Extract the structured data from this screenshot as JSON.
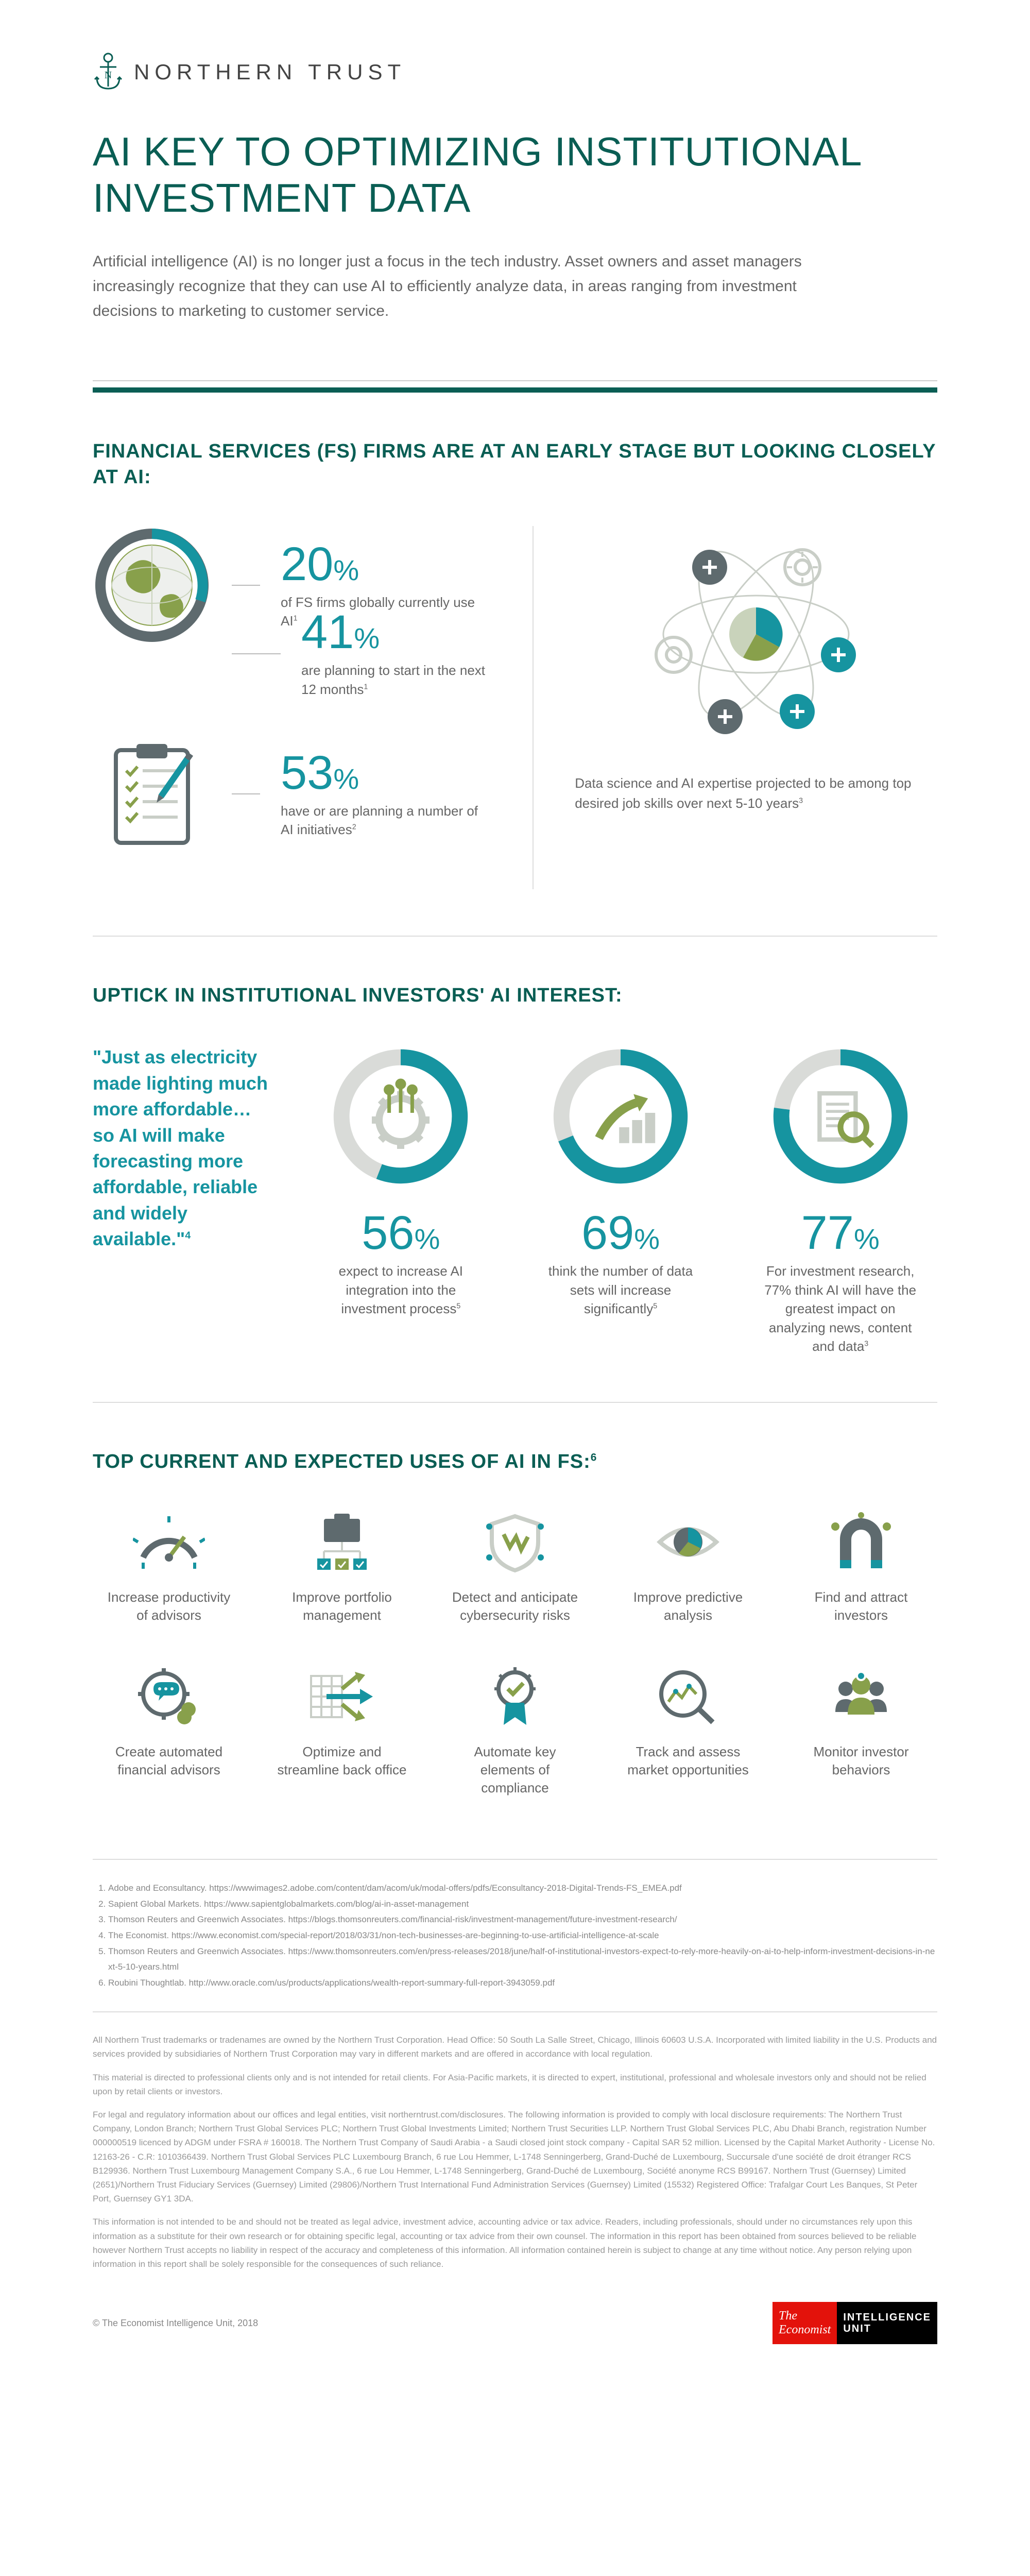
{
  "brand": "NORTHERN TRUST",
  "colors": {
    "primary": "#0a5e54",
    "accent": "#1694a0",
    "olive": "#88a04b",
    "grey": "#5e6a6e",
    "lightgrey": "#d9dbd8",
    "text": "#666"
  },
  "title": "AI KEY TO OPTIMIZING INSTITUTIONAL INVESTMENT DATA",
  "intro": "Artificial intelligence (AI) is no longer just a focus in the tech industry. Asset owners and asset managers increasingly recognize that they can use AI to efficiently analyze data, in areas ranging from investment decisions to marketing to customer service.",
  "section1_heading": "FINANCIAL SERVICES (FS) FIRMS ARE AT AN EARLY STAGE BUT LOOKING CLOSELY AT AI:",
  "stats": [
    {
      "value": "20",
      "desc": "of FS firms globally currently use AI",
      "sup": "1"
    },
    {
      "value": "41",
      "desc": "are planning to start in the next 12 months",
      "sup": "1"
    },
    {
      "value": "53",
      "desc": "have or are planning a number of AI initiatives",
      "sup": "2"
    }
  ],
  "atom_caption": "Data science and AI expertise projected to be among top desired job skills over next 5-10 years",
  "atom_sup": "3",
  "section2_heading": "UPTICK IN INSTITUTIONAL INVESTORS' AI INTEREST:",
  "quote": "\"Just as electricity made lighting much more affordable… so AI will make forecasting more affordable, reliable and widely available.\"",
  "quote_sup": "4",
  "donuts": [
    {
      "pct": 56,
      "label": "56",
      "desc": "expect to increase AI integration into the investment process",
      "sup": "5"
    },
    {
      "pct": 69,
      "label": "69",
      "desc": "think the number of data sets will increase significantly",
      "sup": "5"
    },
    {
      "pct": 77,
      "label": "77",
      "desc": "For investment research, 77% think AI will have the greatest impact on analyzing news, content and data",
      "sup": "3"
    }
  ],
  "section3_heading": "TOP CURRENT AND EXPECTED USES OF AI IN FS:",
  "section3_sup": "6",
  "uses": [
    "Increase productivity of advisors",
    "Improve portfolio management",
    "Detect and anticipate cybersecurity risks",
    "Improve predictive analysis",
    "Find and attract investors",
    "Create automated financial advisors",
    "Optimize and streamline back office",
    "Automate key elements of compliance",
    "Track and assess market opportunities",
    "Monitor investor behaviors"
  ],
  "references": [
    "Adobe and Econsultancy. https://wwwimages2.adobe.com/content/dam/acom/uk/modal-offers/pdfs/Econsultancy-2018-Digital-Trends-FS_EMEA.pdf",
    "Sapient Global Markets. https://www.sapientglobalmarkets.com/blog/ai-in-asset-management",
    "Thomson Reuters and Greenwich Associates. https://blogs.thomsonreuters.com/financial-risk/investment-management/future-investment-research/",
    "The Economist. https://www.economist.com/special-report/2018/03/31/non-tech-businesses-are-beginning-to-use-artificial-intelligence-at-scale",
    "Thomson Reuters and Greenwich Associates. https://www.thomsonreuters.com/en/press-releases/2018/june/half-of-institutional-investors-expect-to-rely-more-heavily-on-ai-to-help-inform-investment-decisions-in-next-5-10-years.html",
    "Roubini Thoughtlab. http://www.oracle.com/us/products/applications/wealth-report-summary-full-report-3943059.pdf"
  ],
  "legal": [
    "All Northern Trust trademarks or tradenames are owned by the Northern Trust Corporation. Head Office: 50 South La Salle Street, Chicago, Illinois 60603 U.S.A. Incorporated with limited liability in the U.S. Products and services provided by subsidiaries of Northern Trust Corporation may vary in different markets and are offered in accordance with local regulation.",
    "This material is directed to professional clients only and is not intended for retail clients. For Asia-Pacific markets, it is directed to expert, institutional, professional and wholesale investors only and should not be relied upon by retail clients or investors.",
    "For legal and regulatory information about our offices and legal entities, visit northerntrust.com/disclosures. The following information is provided to comply with local disclosure requirements: The Northern Trust Company, London Branch; Northern Trust Global Services PLC; Northern Trust Global Investments Limited; Northern Trust Securities LLP. Northern Trust Global Services PLC, Abu Dhabi Branch, registration Number 000000519 licenced by ADGM under FSRA # 160018. The Northern Trust Company of Saudi Arabia - a Saudi closed joint stock company - Capital SAR 52 million. Licensed by the Capital Market Authority - License No. 12163-26 - C.R: 1010366439. Northern Trust Global Services PLC Luxembourg Branch, 6 rue Lou Hemmer, L-1748 Senningerberg, Grand-Duché de Luxembourg, Succursale d'une société de droit étranger RCS B129936. Northern Trust Luxembourg Management Company S.A., 6 rue Lou Hemmer, L-1748 Senningerberg, Grand-Duché de Luxembourg, Société anonyme RCS B99167. Northern Trust (Guernsey) Limited (2651)/Northern Trust Fiduciary Services (Guernsey) Limited (29806)/Northern Trust International Fund Administration Services (Guernsey) Limited (15532) Registered Office: Trafalgar Court Les Banques, St Peter Port, Guernsey GY1 3DA.",
    "This information is not intended to be and should not be treated as legal advice, investment advice, accounting advice or tax advice. Readers, including professionals, should under no circumstances rely upon this information as a substitute for their own research or for obtaining specific legal, accounting or tax advice from their own counsel. The information in this report has been obtained from sources believed to be reliable however Northern Trust accepts no liability in respect of the accuracy and completeness of this information. All information contained herein is subject to change at any time without notice. Any person relying upon information in this report shall be solely responsible for the consequences of such reliance."
  ],
  "copyright": "© The Economist Intelligence Unit, 2018",
  "economist_badge": {
    "left_top": "The",
    "left_bot": "Economist",
    "right_top": "INTELLIGENCE",
    "right_bot": "UNIT"
  }
}
